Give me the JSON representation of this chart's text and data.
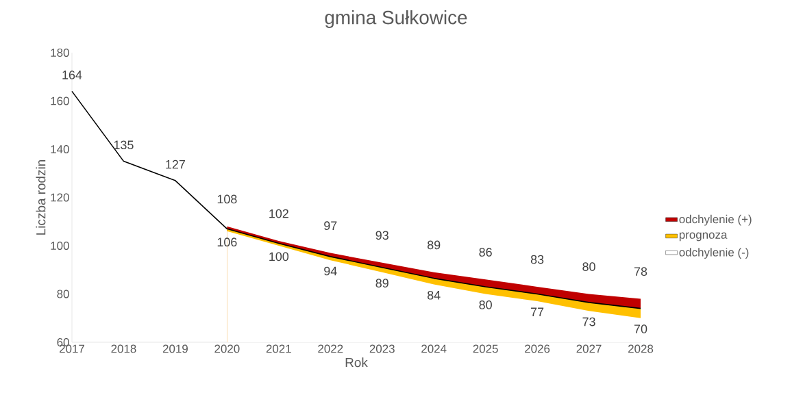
{
  "chart_data": {
    "type": "area",
    "title": "gmina Sułkowice",
    "xlabel": "Rok",
    "ylabel": "Liczba rodzin",
    "categories": [
      "2017",
      "2018",
      "2019",
      "2020",
      "2021",
      "2022",
      "2023",
      "2024",
      "2025",
      "2026",
      "2027",
      "2028"
    ],
    "ylim": [
      60,
      180
    ],
    "yticks": [
      60,
      80,
      100,
      120,
      140,
      160,
      180
    ],
    "grid": false,
    "legend": "right",
    "series": [
      {
        "name": "odchylenie (+)",
        "color": "#c00000",
        "values": [
          null,
          null,
          null,
          108,
          102,
          97,
          93,
          89,
          86,
          83,
          80,
          78
        ],
        "value_labels": [
          null,
          null,
          null,
          "108",
          "102",
          "97",
          "93",
          "89",
          "86",
          "83",
          "80",
          "78"
        ]
      },
      {
        "name": "prognoza",
        "color": "#ffc000",
        "values": [
          null,
          null,
          null,
          107,
          101,
          95.5,
          91,
          86.5,
          83,
          80,
          76.5,
          74
        ]
      },
      {
        "name": "odchylenie (-)",
        "color": "#ffffff",
        "values": [
          null,
          null,
          null,
          106,
          100,
          94,
          89,
          84,
          80,
          77,
          73,
          70
        ],
        "value_labels": [
          null,
          null,
          null,
          "106",
          "100",
          "94",
          "89",
          "84",
          "80",
          "77",
          "73",
          "70"
        ]
      },
      {
        "type": "line",
        "color": "#000000",
        "values": [
          164,
          135,
          127,
          107,
          101,
          95.5,
          91,
          86.5,
          83,
          80,
          76.5,
          74
        ],
        "value_labels": [
          "164",
          "135",
          "127",
          null,
          null,
          null,
          null,
          null,
          null,
          null,
          null,
          null
        ]
      }
    ]
  }
}
